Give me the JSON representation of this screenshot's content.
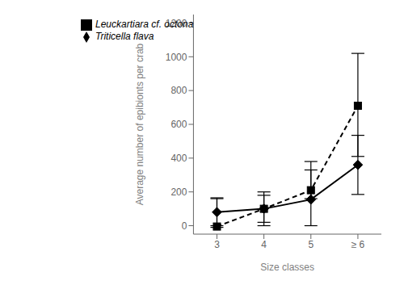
{
  "chart_data": {
    "type": "line",
    "x": [
      3,
      4,
      5,
      6
    ],
    "xlabel": "Size classes",
    "ylabel": "Average number of epibionts per crab",
    "xlim": [
      2.5,
      6.5
    ],
    "xticks": [
      3,
      4,
      5,
      {
        "value": 6,
        "label": "≥ 6"
      }
    ],
    "ylim": [
      -50,
      1250
    ],
    "yticks": [
      0,
      200,
      400,
      600,
      800,
      1000,
      1200
    ],
    "grid": false,
    "legend": "upper left",
    "series": [
      {
        "name": "Leuckartiara cf. octona",
        "color": "#000000",
        "marker": "square",
        "line_style": "dashed",
        "values": [
          -5,
          100,
          210,
          710
        ],
        "yerr_lower": [
          5,
          100,
          50,
          300
        ],
        "yerr_upper": [
          170,
          100,
          170,
          310
        ]
      },
      {
        "name": "Triticella flava",
        "color": "#000000",
        "marker": "diamond",
        "line_style": "solid",
        "values": [
          80,
          100,
          155,
          360
        ],
        "yerr_lower": [
          80,
          80,
          155,
          175
        ],
        "yerr_upper": [
          80,
          80,
          175,
          175
        ]
      }
    ]
  }
}
